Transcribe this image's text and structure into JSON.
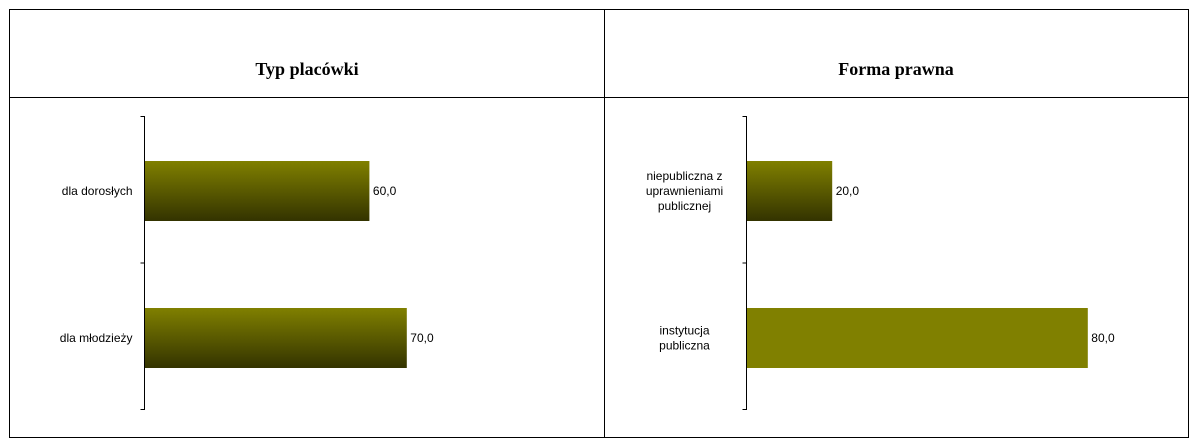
{
  "chart_data": [
    {
      "type": "bar",
      "orientation": "horizontal",
      "title": "Typ placówki",
      "categories": [
        "dla dorosłych",
        "dla młodzieży"
      ],
      "values": [
        60.0,
        70.0
      ],
      "value_labels": [
        "60,0",
        "70,0"
      ],
      "xlim": [
        0,
        100
      ],
      "grid": false,
      "legend": "none",
      "bar_style": "gradient",
      "color_top": "#808000",
      "color_bottom": "#333300"
    },
    {
      "type": "bar",
      "orientation": "horizontal",
      "title": "Forma prawna",
      "categories": [
        "niepubliczna z uprawnieniami publicznej",
        "instytucja publiczna"
      ],
      "category_lines": [
        [
          "niepubliczna z",
          "uprawnieniami",
          "publicznej"
        ],
        [
          "instytucja",
          "publiczna"
        ]
      ],
      "values": [
        20.0,
        80.0
      ],
      "value_labels": [
        "20,0",
        "80,0"
      ],
      "xlim": [
        0,
        100
      ],
      "grid": false,
      "legend": "none",
      "bar_fills": [
        "gradient",
        "solid"
      ],
      "color_top": "#808000",
      "color_bottom": "#333300",
      "color_solid": "#808000"
    }
  ]
}
